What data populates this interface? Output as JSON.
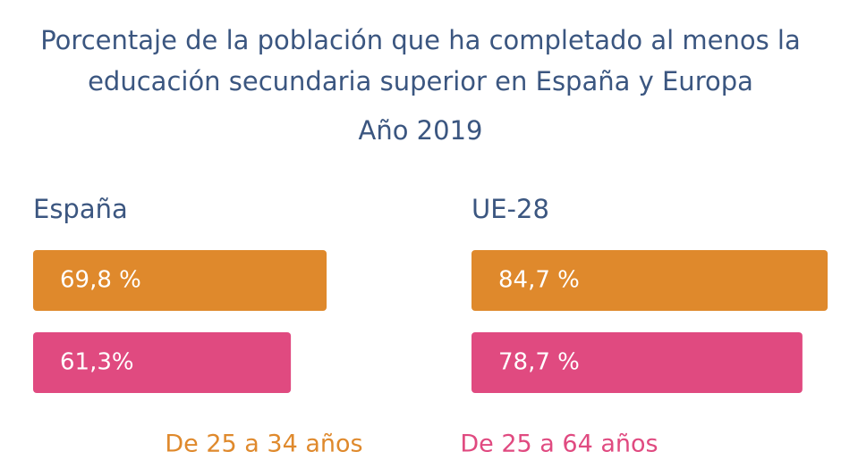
{
  "chart_data": {
    "type": "bar",
    "title": "Porcentaje de la población que ha completado al menos la educación secundaria superior en España y Europa",
    "subtitle": "Año 2019",
    "categories": [
      "España",
      "UE-28"
    ],
    "series": [
      {
        "name": "De 25 a 34 años",
        "color": "#df892c",
        "values": [
          69.8,
          84.7
        ],
        "value_labels": [
          "69,8 %",
          "84,7 %"
        ]
      },
      {
        "name": "De 25 a 64 años",
        "color": "#e04a80",
        "values": [
          61.3,
          78.7
        ],
        "value_labels": [
          "61,3%",
          "78,7 %"
        ]
      }
    ]
  }
}
